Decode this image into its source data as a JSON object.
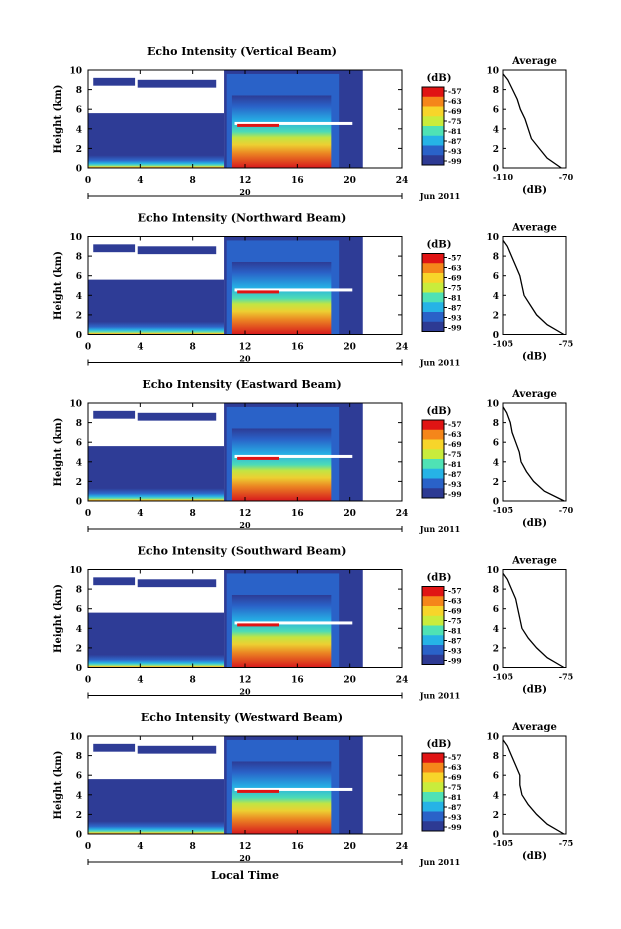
{
  "figure": {
    "xaxis_title": "Local Time"
  },
  "colorbar": {
    "unit": "(dB)",
    "ticks": [
      "-57",
      "-63",
      "-69",
      "-75",
      "-81",
      "-87",
      "-93",
      "-99"
    ],
    "colors": [
      "#e01414",
      "#f5861a",
      "#f7d52a",
      "#c9ec3c",
      "#4fe2b5",
      "#26b3e6",
      "#2a62c8",
      "#2d3a93"
    ]
  },
  "panels": [
    {
      "title": "Echo Intensity (Vertical Beam)",
      "date_label": "Jun 2011",
      "day_label": "20",
      "avg_title": "Average",
      "avg_xlabel": "(dB)",
      "avg_xticks": [
        "-110",
        "-70"
      ]
    },
    {
      "title": "Echo Intensity (Northward Beam)",
      "date_label": "Jun 2011",
      "day_label": "20",
      "avg_title": "Average",
      "avg_xlabel": "(dB)",
      "avg_xticks": [
        "-105",
        "-75"
      ]
    },
    {
      "title": "Echo Intensity (Eastward Beam)",
      "date_label": "Jun 2011",
      "day_label": "20",
      "avg_title": "Average",
      "avg_xlabel": "(dB)",
      "avg_xticks": [
        "-105",
        "-70"
      ]
    },
    {
      "title": "Echo Intensity (Southward Beam)",
      "date_label": "Jun 2011",
      "day_label": "20",
      "avg_title": "Average",
      "avg_xlabel": "(dB)",
      "avg_xticks": [
        "-105",
        "-75"
      ]
    },
    {
      "title": "Echo Intensity (Westward Beam)",
      "date_label": "Jun 2011",
      "day_label": "20",
      "avg_title": "Average",
      "avg_xlabel": "(dB)",
      "avg_xticks": [
        "-105",
        "-75"
      ]
    }
  ],
  "chart_data": {
    "type": "heatmap",
    "title": "Echo Intensity",
    "xlabel": "Local Time",
    "ylabel": "Height (km)",
    "xlim": [
      0,
      24
    ],
    "ylim": [
      0,
      10
    ],
    "xticks": [
      0,
      4,
      8,
      12,
      16,
      20,
      24
    ],
    "yticks": [
      0,
      2,
      4,
      6,
      8,
      10
    ],
    "date": "20 Jun 2011",
    "colorbar_range_db": [
      -99,
      -57
    ],
    "beams": [
      "Vertical",
      "Northward",
      "Eastward",
      "Southward",
      "Westward"
    ],
    "average_profiles": [
      {
        "beam": "Vertical",
        "xlim": [
          -110,
          -70
        ],
        "height_km": [
          0,
          1,
          2,
          3,
          4,
          5,
          6,
          7,
          8,
          9,
          9.6
        ],
        "db": [
          -73,
          -82,
          -87,
          -92,
          -94,
          -96,
          -99,
          -101,
          -104,
          -107,
          -110
        ]
      },
      {
        "beam": "Northward",
        "xlim": [
          -105,
          -75
        ],
        "height_km": [
          0,
          1,
          2,
          3,
          4,
          5,
          6,
          7,
          8,
          9,
          9.6
        ],
        "db": [
          -76,
          -84,
          -89,
          -92,
          -95,
          -96,
          -97,
          -99,
          -101,
          -103,
          -105
        ]
      },
      {
        "beam": "Eastward",
        "xlim": [
          -105,
          -70
        ],
        "height_km": [
          0,
          1,
          2,
          3,
          4,
          5,
          6,
          7,
          8,
          9,
          9.6
        ],
        "db": [
          -71,
          -82,
          -88,
          -92,
          -95,
          -96,
          -98,
          -100,
          -101,
          -103,
          -105
        ]
      },
      {
        "beam": "Southward",
        "xlim": [
          -105,
          -75
        ],
        "height_km": [
          0,
          1,
          2,
          3,
          4,
          5,
          6,
          7,
          8,
          9,
          9.6
        ],
        "db": [
          -76,
          -84,
          -89,
          -93,
          -96,
          -97,
          -98,
          -99,
          -101,
          -103,
          -105
        ]
      },
      {
        "beam": "Westward",
        "xlim": [
          -105,
          -75
        ],
        "height_km": [
          0,
          1,
          2,
          3,
          4,
          5,
          6,
          7,
          8,
          9,
          9.6
        ],
        "db": [
          -76,
          -84,
          -89,
          -93,
          -96,
          -97,
          -97,
          -99,
          -101,
          -103,
          -105
        ]
      }
    ]
  }
}
